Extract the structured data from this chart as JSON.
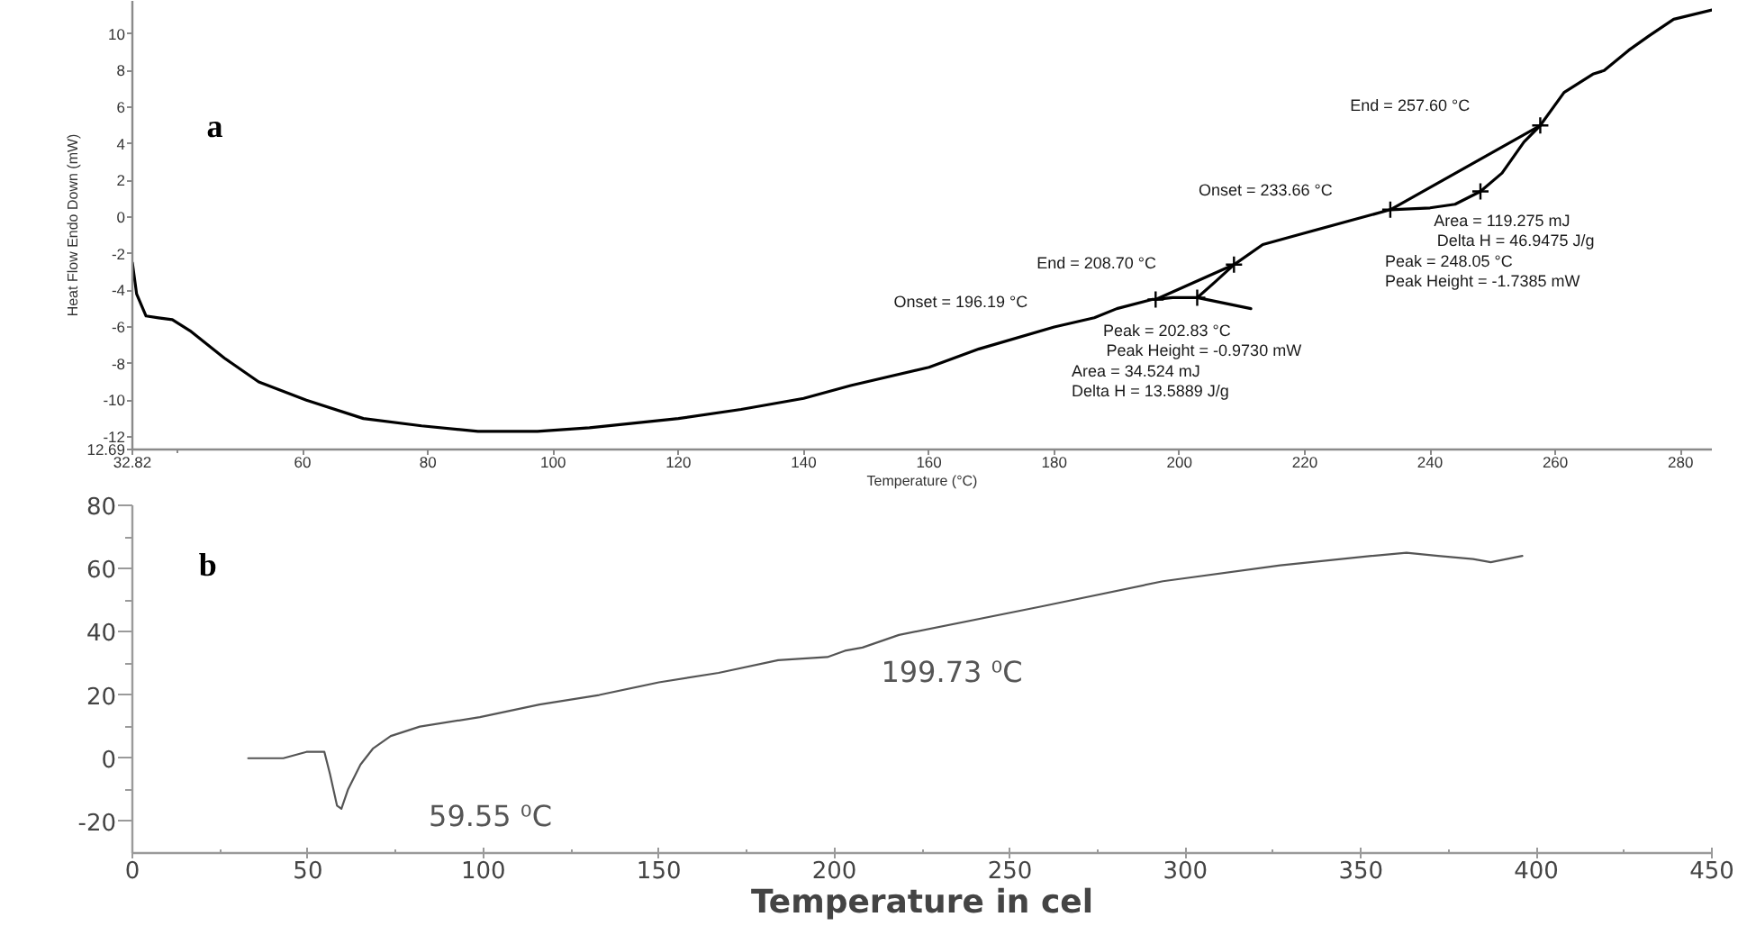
{
  "chart_data": [
    {
      "type": "line",
      "title": "a",
      "xlabel": "Temperature (°C)",
      "ylabel": "Heat Flow Endo Down (mW)",
      "xlim": [
        32.82,
        285
      ],
      "ylim": [
        -12.69,
        11.8
      ],
      "xticks": [
        32.82,
        {
          "value": 40,
          "label": null
        },
        60,
        80,
        100,
        120,
        140,
        160,
        180,
        200,
        220,
        240,
        260,
        280
      ],
      "yticks": [
        {
          "value": -12.69,
          "label": "12.69"
        },
        -12,
        -10,
        -8,
        -6,
        -4,
        -2,
        0,
        2,
        4,
        6,
        8,
        10
      ],
      "series": [
        {
          "color": "#000000",
          "x": [
            32.82,
            33.5,
            35,
            37,
            39.2,
            42,
            47.5,
            53,
            60.6,
            69.7,
            79,
            88,
            97.5,
            105.8,
            120,
            130,
            140,
            147.5,
            160,
            168,
            180,
            186.4,
            190,
            195.6,
            196.19,
            198.9,
            202.83,
            205.5,
            208.7,
            213.3,
            219.7,
            227.2,
            233.66,
            240,
            244,
            248.05,
            251.5,
            255,
            257.6,
            261.4,
            266,
            267.8,
            271.7,
            275,
            278.9,
            285
          ],
          "values": [
            -2.5,
            -4.2,
            -5.4,
            -5.5,
            -5.6,
            -6.2,
            -7.7,
            -9.0,
            -10.0,
            -11.0,
            -11.4,
            -11.7,
            -11.7,
            -11.5,
            -11.0,
            -10.5,
            -9.9,
            -9.2,
            -8.2,
            -7.2,
            -6.0,
            -5.5,
            -5.0,
            -4.5,
            -4.5,
            -4.4,
            -4.4,
            -3.6,
            -2.6,
            -1.5,
            -0.9,
            -0.2,
            0.4,
            0.5,
            0.7,
            1.4,
            2.4,
            4.1,
            5.0,
            6.8,
            7.8,
            8.0,
            9.1,
            9.9,
            10.8,
            11.3
          ]
        },
        {
          "color": "#000000",
          "x": [
            196.19,
            208.7
          ],
          "values": [
            -4.5,
            -2.6
          ]
        },
        {
          "color": "#000000",
          "x": [
            202.83,
            211.4
          ],
          "values": [
            -4.4,
            -5.0
          ]
        },
        {
          "color": "#000000",
          "x": [
            233.66,
            257.6
          ],
          "values": [
            0.4,
            5.0
          ]
        },
        {
          "type": "scatter",
          "marker": "cross",
          "color": "#000000",
          "x": [
            196.19,
            202.83,
            208.7,
            233.66,
            248.05,
            257.6
          ],
          "values": [
            -4.5,
            -4.4,
            -2.6,
            0.4,
            1.4,
            5.0
          ]
        }
      ],
      "annotations": [
        "End = 257.60 °C",
        "Onset = 233.66 °C",
        "Area = 119.275 mJ",
        "Delta H = 46.9475 J/g",
        "Peak = 248.05 °C",
        "Peak Height = -1.7385 mW",
        "End = 208.70 °C",
        "Onset = 196.19 °C",
        "Peak = 202.83 °C",
        "Peak Height = -0.9730 mW",
        "Area = 34.524 mJ",
        "Delta H = 13.5889 J/g"
      ]
    },
    {
      "type": "line",
      "title": "b",
      "xlabel": "Temperature in cel",
      "xlim": [
        0,
        450
      ],
      "ylim": [
        -30,
        80
      ],
      "xticks": [
        0,
        {
          "value": 25,
          "label": null
        },
        50,
        {
          "value": 75,
          "label": null
        },
        100,
        {
          "value": 125,
          "label": null
        },
        150,
        {
          "value": 175,
          "label": null
        },
        200,
        {
          "value": 225,
          "label": null
        },
        250,
        {
          "value": 275,
          "label": null
        },
        300,
        {
          "value": 325,
          "label": null
        },
        350,
        {
          "value": 375,
          "label": null
        },
        400,
        {
          "value": 425,
          "label": null
        },
        450
      ],
      "yticks": [
        -20,
        {
          "value": -10,
          "label": null
        },
        0,
        {
          "value": 10,
          "label": null
        },
        20,
        {
          "value": 30,
          "label": null
        },
        40,
        {
          "value": 50,
          "label": null
        },
        60,
        {
          "value": 70,
          "label": null
        },
        80
      ],
      "series": [
        {
          "color": "#555555",
          "x": [
            33,
            43,
            49.6,
            54.7,
            56.3,
            58.3,
            59.55,
            61.4,
            65,
            68.5,
            73.6,
            81.9,
            99,
            116,
            133,
            150,
            167,
            184,
            198,
            203,
            208,
            218.4,
            259,
            293.6,
            327,
            353,
            363,
            372,
            382,
            387,
            396
          ],
          "values": [
            0,
            0,
            2,
            2,
            -5,
            -15,
            -16,
            -10,
            -2,
            3,
            7,
            10,
            13,
            17,
            20,
            24,
            27,
            31,
            32,
            34,
            35,
            39,
            48,
            56,
            61,
            64,
            65,
            64,
            63,
            62,
            64
          ]
        }
      ],
      "annotations": [
        "199.73 ⁰C",
        "59.55 ⁰C"
      ]
    }
  ]
}
